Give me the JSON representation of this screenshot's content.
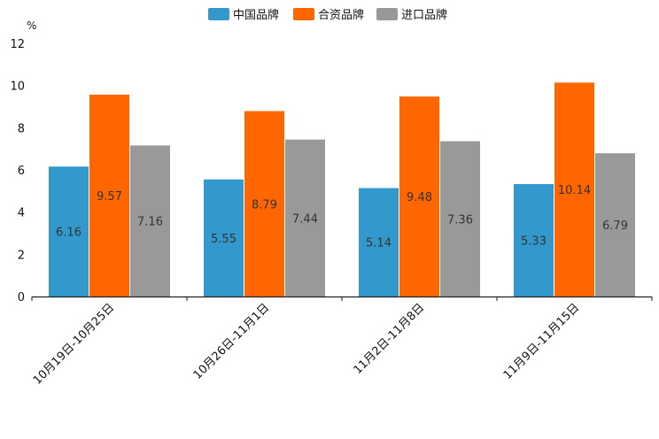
{
  "chart_data": {
    "type": "bar",
    "title": "",
    "unit": "%",
    "categories": [
      "10月19日-10月25日",
      "10月26日-11月1日",
      "11月2日-11月8日",
      "11月9日-11月15日"
    ],
    "series": [
      {
        "name": "中国品牌",
        "color": "#3399cc",
        "values": [
          6.16,
          5.55,
          5.14,
          5.33
        ]
      },
      {
        "name": "合资品牌",
        "color": "#ff6600",
        "values": [
          9.57,
          8.79,
          9.48,
          10.14
        ]
      },
      {
        "name": "进口品牌",
        "color": "#999999",
        "values": [
          7.16,
          7.44,
          7.36,
          6.79
        ]
      }
    ],
    "ylim": [
      0,
      12
    ],
    "yticks": [
      "0",
      "2",
      "4",
      "6",
      "8",
      "10",
      "12"
    ],
    "legend_position": "top-center",
    "grid": false
  }
}
